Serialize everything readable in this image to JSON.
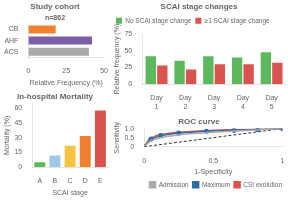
{
  "chart_data": [
    {
      "type": "bar",
      "orientation": "horizontal",
      "title": "Study cohort",
      "subtitle": "n=862",
      "categories": [
        "CB",
        "AHF",
        "ACS"
      ],
      "values": [
        18,
        42,
        40
      ],
      "colors": [
        "#F08030",
        "#7B5EA7",
        "#AAAAAA"
      ],
      "xlabel": "Relative Frequency (%)",
      "xlim": [
        0,
        50
      ],
      "xticks": [
        0,
        25,
        50
      ],
      "grid": false
    },
    {
      "type": "bar",
      "title": "In-hospital Mortality",
      "categories": [
        "A",
        "B",
        "C",
        "D",
        "E"
      ],
      "values": [
        5,
        12,
        22,
        32,
        58
      ],
      "colors": [
        "#5BB85D",
        "#9DC8E8",
        "#F5C242",
        "#F08030",
        "#D9534F"
      ],
      "xlabel": "SCAI stage",
      "ylabel": "Mortality (%)",
      "ylim": [
        0,
        65
      ],
      "yticks": [
        0,
        15,
        30,
        45,
        60
      ],
      "grid": false
    },
    {
      "type": "bar",
      "title": "SCAI stage changes",
      "categories": [
        "Day\n1",
        "Day\n2",
        "Day\n3",
        "Day\n4",
        "Day\n5"
      ],
      "series": [
        {
          "name": "No SCAI stage change",
          "color": "#5BB85D",
          "values": [
            42,
            35,
            42,
            40,
            48
          ]
        },
        {
          "name": "≥1 SCAI stage change",
          "color": "#D9534F",
          "values": [
            28,
            22,
            30,
            30,
            32
          ]
        }
      ],
      "ylabel": "Relative frequency (%)",
      "ylim": [
        0,
        75
      ],
      "yticks": [
        0,
        25,
        50,
        75
      ],
      "grid": false,
      "legend": "upper left"
    },
    {
      "type": "line",
      "title": "ROC curve",
      "series": [
        {
          "name": "Admission",
          "color": "#AAAAAA",
          "x": [
            0,
            0.05,
            0.15,
            0.3,
            0.5,
            0.7,
            0.85,
            1.0
          ],
          "values": [
            0,
            0.35,
            0.55,
            0.7,
            0.8,
            0.88,
            0.93,
            1.0
          ]
        },
        {
          "name": "Maximum",
          "color": "#2E6DA4",
          "marker": "circle",
          "x": [
            0,
            0.05,
            0.12,
            0.25,
            0.45,
            0.65,
            0.82,
            1.0
          ],
          "values": [
            0,
            0.42,
            0.62,
            0.76,
            0.85,
            0.91,
            0.95,
            1.0
          ]
        },
        {
          "name": "CSI evolution",
          "color": "#D9534F",
          "x": [
            0,
            0.04,
            0.1,
            0.22,
            0.4,
            0.6,
            0.8,
            1.0
          ],
          "values": [
            0,
            0.45,
            0.65,
            0.78,
            0.87,
            0.93,
            0.96,
            1.0
          ]
        },
        {
          "color": "#000000",
          "line_style": "dashed",
          "x": [
            0,
            1
          ],
          "values": [
            0,
            1
          ]
        }
      ],
      "xlabel": "1-Specificity",
      "ylabel": "Sensitivity",
      "xlim": [
        0,
        1
      ],
      "xticks": [
        0,
        0.5,
        1
      ],
      "ylim": [
        0,
        1
      ],
      "yticks": [
        0,
        0.5,
        {
          "value": 1,
          "label": "1.0"
        }
      ],
      "grid": false,
      "legend": "lower right"
    }
  ]
}
